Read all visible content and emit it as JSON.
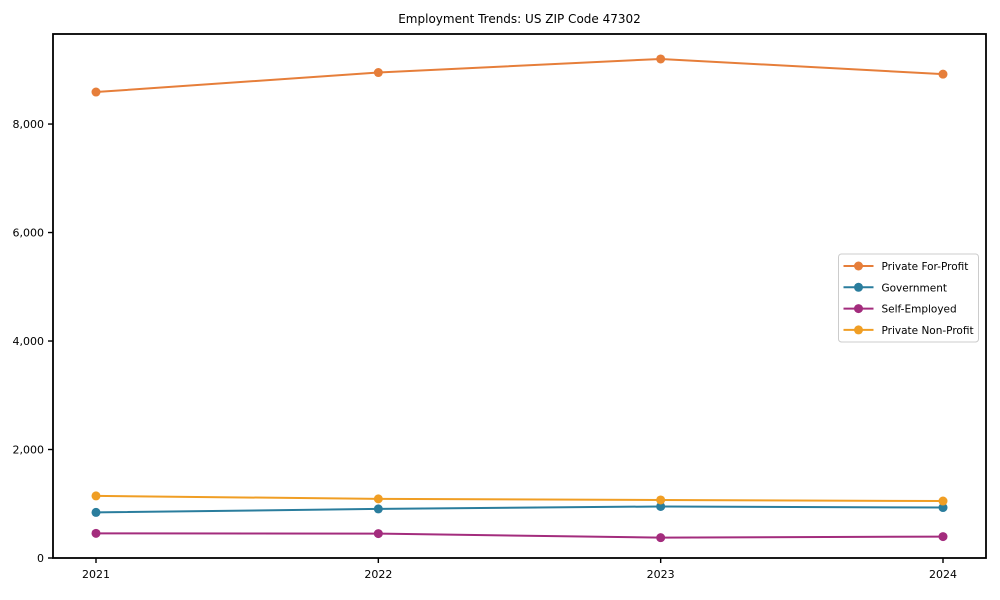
{
  "figure": {
    "background": "#ffffff",
    "axes_color": "#000000",
    "legend_border_color": "#cccccc",
    "legend_background": "#ffffff"
  },
  "chart_data": {
    "type": "line",
    "title": "Employment Trends: US ZIP Code 47302",
    "xlabel": "",
    "ylabel": "",
    "x": [
      2021,
      2022,
      2023,
      2024
    ],
    "x_tick_labels": [
      "2021",
      "2022",
      "2023",
      "2024"
    ],
    "series": [
      {
        "name": "Private For-Profit",
        "color": "#E67E3A",
        "values": [
          8590,
          8950,
          9200,
          8920
        ]
      },
      {
        "name": "Government",
        "color": "#2A7D9D",
        "values": [
          840,
          905,
          950,
          930
        ]
      },
      {
        "name": "Self-Employed",
        "color": "#A32C7D",
        "values": [
          455,
          450,
          375,
          395
        ]
      },
      {
        "name": "Private Non-Profit",
        "color": "#F09E24",
        "values": [
          1145,
          1090,
          1070,
          1050
        ]
      }
    ],
    "ylim": [
      0,
      9660
    ],
    "yticks": [
      0,
      2000,
      4000,
      6000,
      8000
    ],
    "ytick_labels": [
      "0",
      "2,000",
      "4,000",
      "6,000",
      "8,000"
    ],
    "grid": false,
    "legend_position": "center-right",
    "marker": "circle",
    "line_width": 2,
    "marker_radius": 4.5
  }
}
